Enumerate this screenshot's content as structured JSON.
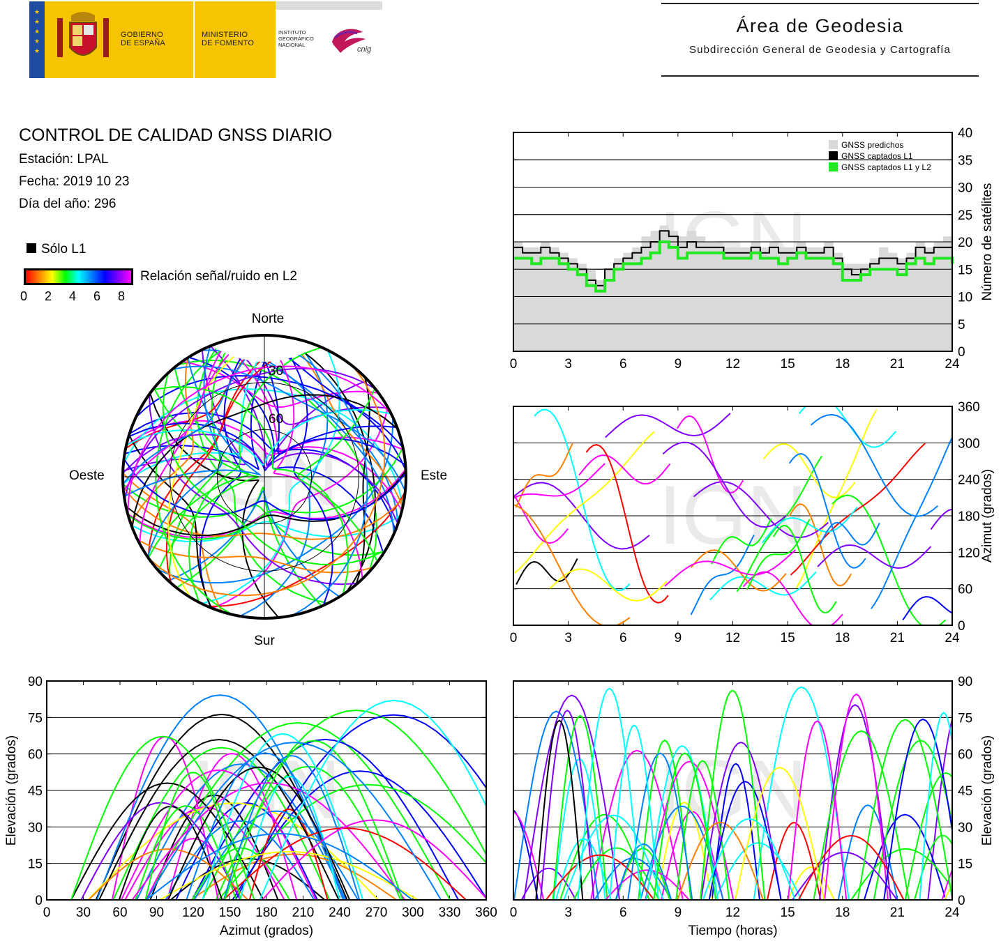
{
  "header": {
    "gobierno": [
      "GOBIERNO",
      "DE ESPAÑA"
    ],
    "ministerio": [
      "MINISTERIO",
      "DE FOMENTO"
    ],
    "instituto": [
      "INSTITUTO",
      "GEOGRÁFICO",
      "NACIONAL"
    ],
    "cnig": "cnig",
    "title": "Área de Geodesia",
    "subtitle": "Subdirección General de Geodesia y Cartografía"
  },
  "info": {
    "title": "CONTROL DE CALIDAD GNSS DIARIO",
    "station": "Estación: LPAL",
    "date": "Fecha: 2019 10 23",
    "doy": "Día del año: 296",
    "legend_l1": "Sólo L1",
    "colorbar_label": "Relación señal/ruido en L2",
    "colorbar_ticks": [
      "0",
      "2",
      "4",
      "6",
      "8"
    ]
  },
  "watermark": "IGN",
  "colors": {
    "gnss_predicted": "#d9d9d9",
    "gnss_l1": "#000000",
    "gnss_l1_l2": "#22e822",
    "snr_scale": [
      "#ff0000",
      "#ff8000",
      "#ffff00",
      "#00ff00",
      "#00ffff",
      "#0080ff",
      "#0000ff",
      "#8000ff",
      "#ff00ff"
    ]
  },
  "chart_data": [
    {
      "id": "skyplot",
      "type": "scatter",
      "projection": "polar",
      "labels": {
        "north": "Norte",
        "south": "Sur",
        "east": "Este",
        "west": "Oeste"
      },
      "ring_labels": [
        "30",
        "60"
      ],
      "rings_elevation_deg": [
        0,
        30,
        60
      ]
    },
    {
      "id": "satellite-count",
      "type": "area",
      "legend": [
        "GNSS predichos",
        "GNSS captados L1",
        "GNSS captados L1 y L2"
      ],
      "legend_position": "top-right",
      "xlim": [
        0,
        24
      ],
      "ylim": [
        0,
        40
      ],
      "xticks": [
        "0",
        "3",
        "6",
        "9",
        "12",
        "15",
        "18",
        "21",
        "24"
      ],
      "yticks": [
        "0",
        "5",
        "10",
        "15",
        "20",
        "25",
        "30",
        "35",
        "40"
      ],
      "ylabel": "Número de satélites",
      "series": [
        {
          "name": "GNSS predichos",
          "x": [
            0,
            0.5,
            1,
            1.5,
            2,
            2.5,
            3,
            3.5,
            4,
            4.5,
            5,
            5.5,
            6,
            6.5,
            7,
            7.5,
            8,
            8.5,
            9,
            9.5,
            10,
            10.5,
            11,
            11.5,
            12,
            12.5,
            13,
            13.5,
            14,
            14.5,
            15,
            15.5,
            16,
            16.5,
            17,
            17.5,
            18,
            18.5,
            19,
            19.5,
            20,
            20.5,
            21,
            21.5,
            22,
            22.5,
            23,
            23.5,
            24
          ],
          "y": [
            20,
            19,
            19,
            20,
            19,
            18,
            17,
            16,
            15,
            13,
            15,
            17,
            18,
            19,
            21,
            22,
            23,
            22,
            21,
            22,
            21,
            20,
            20,
            19,
            19,
            19,
            20,
            19,
            20,
            19,
            19,
            20,
            19,
            19,
            20,
            18,
            16,
            16,
            16,
            17,
            19,
            18,
            17,
            18,
            20,
            19,
            20,
            21,
            20
          ]
        },
        {
          "name": "GNSS captados L1",
          "x": [
            0,
            0.5,
            1,
            1.5,
            2,
            2.5,
            3,
            3.5,
            4,
            4.5,
            5,
            5.5,
            6,
            6.5,
            7,
            7.5,
            8,
            8.5,
            9,
            9.5,
            10,
            10.5,
            11,
            11.5,
            12,
            12.5,
            13,
            13.5,
            14,
            14.5,
            15,
            15.5,
            16,
            16.5,
            17,
            17.5,
            18,
            18.5,
            19,
            19.5,
            20,
            20.5,
            21,
            21.5,
            22,
            22.5,
            23,
            23.5,
            24
          ],
          "y": [
            19,
            18,
            18,
            19,
            18,
            17,
            16,
            15,
            13,
            12,
            15,
            16,
            17,
            18,
            19,
            20,
            22,
            21,
            19,
            20,
            19,
            19,
            19,
            18,
            18,
            18,
            19,
            18,
            19,
            18,
            18,
            19,
            18,
            18,
            19,
            17,
            15,
            14,
            15,
            16,
            17,
            17,
            16,
            17,
            19,
            18,
            19,
            19,
            18
          ]
        },
        {
          "name": "GNSS captados L1 y L2",
          "x": [
            0,
            0.5,
            1,
            1.5,
            2,
            2.5,
            3,
            3.5,
            4,
            4.5,
            5,
            5.5,
            6,
            6.5,
            7,
            7.5,
            8,
            8.5,
            9,
            9.5,
            10,
            10.5,
            11,
            11.5,
            12,
            12.5,
            13,
            13.5,
            14,
            14.5,
            15,
            15.5,
            16,
            16.5,
            17,
            17.5,
            18,
            18.5,
            19,
            19.5,
            20,
            20.5,
            21,
            21.5,
            22,
            22.5,
            23,
            23.5,
            24
          ],
          "y": [
            17,
            17,
            16,
            17,
            17,
            16,
            15,
            14,
            12,
            11,
            13,
            15,
            16,
            16,
            17,
            18,
            20,
            19,
            17,
            18,
            18,
            18,
            18,
            17,
            17,
            17,
            18,
            17,
            17,
            16,
            17,
            18,
            17,
            17,
            17,
            16,
            13,
            13,
            14,
            15,
            15,
            15,
            14,
            16,
            17,
            16,
            17,
            17,
            16
          ]
        }
      ]
    },
    {
      "id": "azimuth-time",
      "type": "scatter",
      "xlim": [
        0,
        24
      ],
      "ylim": [
        0,
        360
      ],
      "xticks": [
        "0",
        "3",
        "6",
        "9",
        "12",
        "15",
        "18",
        "21",
        "24"
      ],
      "yticks": [
        "0",
        "60",
        "120",
        "180",
        "240",
        "300",
        "360"
      ],
      "ylabel": "Azimut (grados)"
    },
    {
      "id": "elevation-azimuth",
      "type": "scatter",
      "xlim": [
        0,
        360
      ],
      "ylim": [
        0,
        90
      ],
      "xticks": [
        "0",
        "30",
        "60",
        "90",
        "120",
        "150",
        "180",
        "210",
        "240",
        "270",
        "300",
        "330",
        "360"
      ],
      "yticks": [
        "0",
        "15",
        "30",
        "45",
        "60",
        "75",
        "90"
      ],
      "xlabel": "Azimut (grados)",
      "ylabel": "Elevación (grados)"
    },
    {
      "id": "elevation-time",
      "type": "scatter",
      "xlim": [
        0,
        24
      ],
      "ylim": [
        0,
        90
      ],
      "xticks": [
        "0",
        "3",
        "6",
        "9",
        "12",
        "15",
        "18",
        "21",
        "24"
      ],
      "yticks": [
        "0",
        "15",
        "30",
        "45",
        "60",
        "75",
        "90"
      ],
      "xlabel": "Tiempo (horas)",
      "ylabel": "Elevación (grados)"
    }
  ]
}
